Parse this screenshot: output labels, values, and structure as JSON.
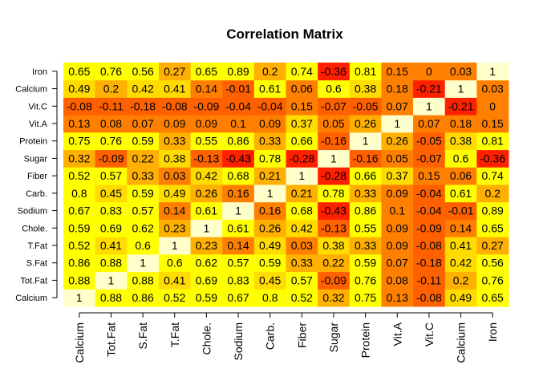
{
  "chart_data": {
    "type": "heatmap",
    "title": "Correlation Matrix",
    "x_labels": [
      "Calcium",
      "Tot.Fat",
      "S.Fat",
      "T.Fat",
      "Chole.",
      "Sodium",
      "Carb.",
      "Fiber",
      "Sugar",
      "Protein",
      "Vit.A",
      "Vit.C",
      "Calcium",
      "Iron"
    ],
    "y_labels": [
      "Calcium",
      "Tot.Fat",
      "S.Fat",
      "T.Fat",
      "Chole.",
      "Sodium",
      "Carb.",
      "Fiber",
      "Sugar",
      "Protein",
      "Vit.A",
      "Vit.C",
      "Calcium",
      "Iron"
    ],
    "values": [
      [
        1,
        0.88,
        0.86,
        0.52,
        0.59,
        0.67,
        0.8,
        0.52,
        0.32,
        0.75,
        0.13,
        -0.08,
        0.49,
        0.65
      ],
      [
        0.88,
        1,
        0.88,
        0.41,
        0.69,
        0.83,
        0.45,
        0.57,
        -0.09,
        0.76,
        0.08,
        -0.11,
        0.2,
        0.76
      ],
      [
        0.86,
        0.88,
        1,
        0.6,
        0.62,
        0.57,
        0.59,
        0.33,
        0.22,
        0.59,
        0.07,
        -0.18,
        0.42,
        0.56
      ],
      [
        0.52,
        0.41,
        0.6,
        1,
        0.23,
        0.14,
        0.49,
        0.03,
        0.38,
        0.33,
        0.09,
        -0.08,
        0.41,
        0.27
      ],
      [
        0.59,
        0.69,
        0.62,
        0.23,
        1,
        0.61,
        0.26,
        0.42,
        -0.13,
        0.55,
        0.09,
        -0.09,
        0.14,
        0.65
      ],
      [
        0.67,
        0.83,
        0.57,
        0.14,
        0.61,
        1,
        0.16,
        0.68,
        -0.43,
        0.86,
        0.1,
        -0.04,
        -0.01,
        0.89
      ],
      [
        0.8,
        0.45,
        0.59,
        0.49,
        0.26,
        0.16,
        1,
        0.21,
        0.78,
        0.33,
        0.09,
        -0.04,
        0.61,
        0.2
      ],
      [
        0.52,
        0.57,
        0.33,
        0.03,
        0.42,
        0.68,
        0.21,
        1,
        -0.28,
        0.66,
        0.37,
        0.15,
        0.06,
        0.74
      ],
      [
        0.32,
        -0.09,
        0.22,
        0.38,
        -0.13,
        -0.43,
        0.78,
        -0.28,
        1,
        -0.16,
        0.05,
        -0.07,
        0.6,
        -0.36
      ],
      [
        0.75,
        0.76,
        0.59,
        0.33,
        0.55,
        0.86,
        0.33,
        0.66,
        -0.16,
        1,
        0.26,
        -0.05,
        0.38,
        0.81
      ],
      [
        0.13,
        0.08,
        0.07,
        0.09,
        0.09,
        0.1,
        0.09,
        0.37,
        0.05,
        0.26,
        1,
        0.07,
        0.18,
        0.15
      ],
      [
        -0.08,
        -0.11,
        -0.18,
        -0.08,
        -0.09,
        -0.04,
        -0.04,
        0.15,
        -0.07,
        -0.05,
        0.07,
        1,
        -0.21,
        0
      ],
      [
        0.49,
        0.2,
        0.42,
        0.41,
        0.14,
        -0.01,
        0.61,
        0.06,
        0.6,
        0.38,
        0.18,
        -0.21,
        1,
        0.03
      ],
      [
        0.65,
        0.76,
        0.56,
        0.27,
        0.65,
        0.89,
        0.2,
        0.74,
        -0.36,
        0.81,
        0.15,
        0,
        0.03,
        1
      ]
    ],
    "value_range": [
      -1,
      1
    ],
    "color_scheme": "heat.colors",
    "colors": {
      "high": "#FFFFCC",
      "mid": "#FFFF00",
      "low_mid": "#FF8000",
      "low": "#FF0000"
    },
    "cell_labels": true,
    "grid": false,
    "legend": "none"
  }
}
